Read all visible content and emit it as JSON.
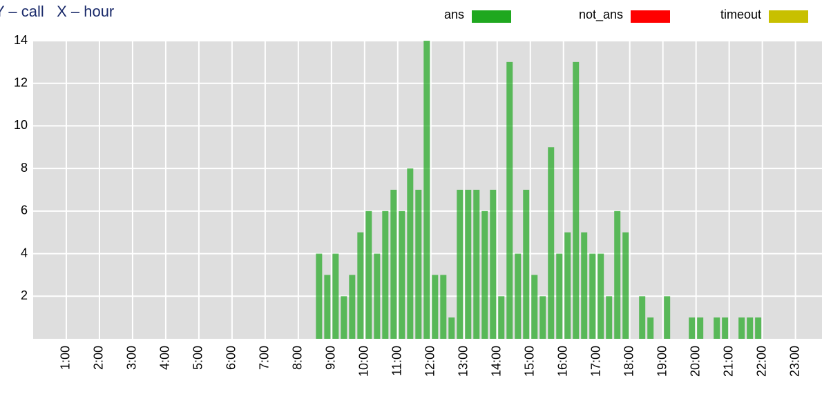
{
  "chart_data": {
    "type": "bar",
    "stacked": true,
    "title": "Y – call   X – hour",
    "x": [
      8.5,
      8.75,
      9,
      9.25,
      9.5,
      9.75,
      10,
      10.25,
      10.5,
      10.75,
      11,
      11.25,
      11.5,
      11.75,
      12,
      12.25,
      12.5,
      12.75,
      13,
      13.25,
      13.5,
      13.75,
      14,
      14.25,
      14.5,
      14.75,
      15,
      15.25,
      15.5,
      15.75,
      16,
      16.25,
      16.5,
      16.75,
      17,
      17.25,
      17.5,
      17.75,
      18,
      18.25,
      18.5,
      18.75,
      19,
      19.25,
      19.5,
      19.75,
      20,
      20.25,
      20.5,
      20.75,
      21,
      21.25,
      21.5,
      21.75
    ],
    "series": [
      {
        "name": "ans",
        "color": "#1fa81f",
        "values": [
          4,
          3,
          4,
          2,
          3,
          5,
          6,
          4,
          6,
          7,
          6,
          8,
          7,
          14,
          3,
          3,
          1,
          7,
          7,
          7,
          6,
          7,
          2,
          13,
          4,
          7,
          3,
          2,
          9,
          4,
          5,
          13,
          5,
          4,
          4,
          2,
          6,
          5,
          0,
          2,
          1,
          0,
          2,
          0,
          0,
          1,
          1,
          0,
          1,
          1,
          0,
          1,
          1,
          1
        ]
      },
      {
        "name": "not_ans",
        "color": "#ff0000",
        "values": [
          0,
          0,
          0,
          0,
          0,
          0,
          0,
          0,
          0,
          0,
          0,
          0,
          0,
          0,
          0,
          0,
          0,
          0,
          0,
          0,
          0,
          0,
          0,
          0,
          0,
          0,
          0,
          0,
          0,
          0,
          0,
          0,
          0,
          0,
          0,
          0,
          0,
          0,
          0,
          0,
          0,
          0,
          0,
          0,
          0,
          0,
          0,
          0,
          0,
          0,
          0,
          0,
          0,
          0
        ]
      },
      {
        "name": "timeout",
        "color": "#c8c000",
        "values": [
          0,
          0,
          0,
          0,
          0,
          0,
          0,
          0,
          0,
          0,
          0,
          0,
          0,
          0,
          0,
          0,
          0,
          0,
          0,
          0,
          0,
          0,
          0,
          0,
          0,
          0,
          0,
          0,
          0,
          0,
          0,
          0,
          0,
          0,
          0,
          0,
          0,
          0,
          0,
          0,
          0,
          0,
          0,
          0,
          0,
          0,
          0,
          0,
          0,
          0,
          0,
          0,
          0,
          0
        ]
      }
    ],
    "xlim": [
      0,
      23.8
    ],
    "xticks": [
      {
        "value": 1,
        "label": "1:00"
      },
      {
        "value": 2,
        "label": "2:00"
      },
      {
        "value": 3,
        "label": "3:00"
      },
      {
        "value": 4,
        "label": "4:00"
      },
      {
        "value": 5,
        "label": "5:00"
      },
      {
        "value": 6,
        "label": "6:00"
      },
      {
        "value": 7,
        "label": "7:00"
      },
      {
        "value": 8,
        "label": "8:00"
      },
      {
        "value": 9,
        "label": "9:00"
      },
      {
        "value": 10,
        "label": "10:00"
      },
      {
        "value": 11,
        "label": "11:00"
      },
      {
        "value": 12,
        "label": "12:00"
      },
      {
        "value": 13,
        "label": "13:00"
      },
      {
        "value": 14,
        "label": "14:00"
      },
      {
        "value": 15,
        "label": "15:00"
      },
      {
        "value": 16,
        "label": "16:00"
      },
      {
        "value": 17,
        "label": "17:00"
      },
      {
        "value": 18,
        "label": "18:00"
      },
      {
        "value": 19,
        "label": "19:00"
      },
      {
        "value": 20,
        "label": "20:00"
      },
      {
        "value": 21,
        "label": "21:00"
      },
      {
        "value": 22,
        "label": "22:00"
      },
      {
        "value": 23,
        "label": "23:00"
      }
    ],
    "ylim": [
      0,
      14
    ],
    "yticks": [
      2,
      4,
      6,
      8,
      10,
      12,
      14
    ],
    "grid": true
  }
}
